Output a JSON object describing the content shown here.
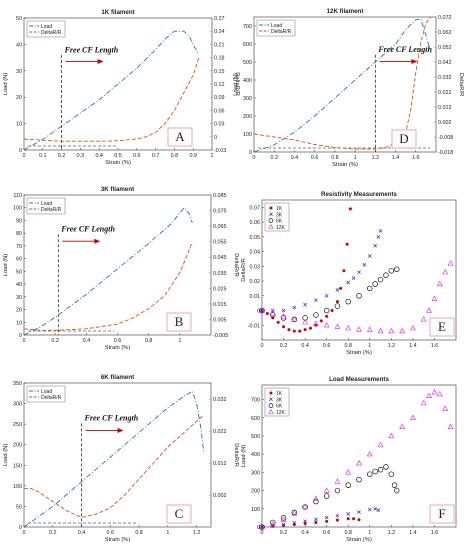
{
  "colors": {
    "load": "#1f77b4",
    "delta": "#d95319",
    "red": "#cc0000",
    "blue": "#2b2bd6",
    "black": "#111111",
    "magenta": "#e020e0",
    "letterbox": "#e8a0a0"
  },
  "chart_data": [
    {
      "type": "line",
      "title": "1K filament",
      "xlabel": "Strain (%)",
      "ylabel": "Load (N)",
      "ylabel_right": "DeltaR/R",
      "xlim": [
        0,
        1
      ],
      "ylim": [
        0,
        50
      ],
      "ylim_right": [
        -0.03,
        0.27
      ],
      "xticks": [
        "0",
        "0.1",
        "0.2",
        "0.3",
        "0.4",
        "0.5",
        "0.6",
        "0.7",
        "0.8",
        "0.9",
        "1"
      ],
      "yticks": [
        "0",
        "10",
        "20",
        "30",
        "40",
        "50"
      ],
      "yticks_right": [
        "-0.03",
        "0",
        "0.03",
        "0.06",
        "0.09",
        "0.12",
        "0.15",
        "0.18",
        "0.21",
        "0.24",
        "0.27"
      ],
      "legend": [
        "Load",
        "DeltaR/R"
      ],
      "annotation": "Free CF Length",
      "panel_letter": "A",
      "marker_x": 0.2,
      "series": [
        {
          "name": "Load",
          "axis": "left",
          "x": [
            0,
            0.1,
            0.2,
            0.3,
            0.4,
            0.5,
            0.6,
            0.7,
            0.75,
            0.8,
            0.85,
            0.88,
            0.9,
            0.93
          ],
          "y": [
            0,
            4,
            9,
            14,
            19,
            25,
            31,
            38,
            42,
            45,
            45,
            43,
            40,
            36
          ]
        },
        {
          "name": "DeltaR/R",
          "axis": "right",
          "x": [
            0,
            0.1,
            0.2,
            0.3,
            0.4,
            0.5,
            0.6,
            0.65,
            0.7,
            0.75,
            0.8,
            0.85,
            0.9,
            0.93
          ],
          "y": [
            -0.005,
            -0.008,
            -0.01,
            -0.01,
            -0.01,
            -0.009,
            -0.005,
            0.0,
            0.01,
            0.03,
            0.06,
            0.1,
            0.14,
            0.18
          ]
        }
      ]
    },
    {
      "type": "line",
      "title": "12K filament",
      "xlabel": "Strain (%)",
      "ylabel": "Load (N)",
      "ylabel_right": "DeltaR/R",
      "xlim": [
        0,
        1.8
      ],
      "ylim": [
        0,
        750
      ],
      "ylim_right": [
        -0.018,
        0.072
      ],
      "xticks": [
        "0",
        "0.2",
        "0.4",
        "0.6",
        "0.8",
        "1",
        "1.2",
        "1.4",
        "1.6"
      ],
      "yticks": [
        "0",
        "100",
        "200",
        "300",
        "400",
        "500",
        "600",
        "700"
      ],
      "yticks_right": [
        "-0.018",
        "-0.008",
        "0.002",
        "0.012",
        "0.022",
        "0.032",
        "0.042",
        "0.052",
        "0.062",
        "0.072"
      ],
      "legend": [
        "Load",
        "DeltaR/R"
      ],
      "annotation": "Free CF Length",
      "panel_letter": "D",
      "marker_x": 1.2,
      "series": [
        {
          "name": "Load",
          "axis": "left",
          "x": [
            0,
            0.2,
            0.4,
            0.6,
            0.8,
            1.0,
            1.2,
            1.4,
            1.5,
            1.6,
            1.65,
            1.7,
            1.75
          ],
          "y": [
            0,
            40,
            110,
            200,
            300,
            400,
            500,
            600,
            680,
            735,
            740,
            650,
            550
          ]
        },
        {
          "name": "DeltaR/R",
          "axis": "right",
          "x": [
            0,
            0.2,
            0.4,
            0.6,
            0.8,
            1.0,
            1.2,
            1.3,
            1.4,
            1.5,
            1.55,
            1.6,
            1.65,
            1.7,
            1.75
          ],
          "y": [
            -0.006,
            -0.008,
            -0.01,
            -0.013,
            -0.015,
            -0.016,
            -0.016,
            -0.015,
            -0.012,
            -0.005,
            0.01,
            0.035,
            0.055,
            0.068,
            0.072
          ]
        }
      ]
    },
    {
      "type": "line",
      "title": "3K filament",
      "xlabel": "Strain (%)",
      "ylabel": "Load (N)",
      "ylabel_right": "DeltaR/R",
      "xlim": [
        0,
        1.2
      ],
      "ylim": [
        0,
        110
      ],
      "ylim_right": [
        -0.005,
        0.085
      ],
      "xticks": [
        "0",
        "0.2",
        "0.4",
        "0.6",
        "0.8",
        "1"
      ],
      "yticks": [
        "0",
        "10",
        "20",
        "30",
        "40",
        "50",
        "60",
        "70",
        "80",
        "90",
        "100",
        "110"
      ],
      "yticks_right": [
        "-0.005",
        "0.005",
        "0.015",
        "0.025",
        "0.035",
        "0.045",
        "0.055",
        "0.065",
        "0.075",
        "0.085"
      ],
      "legend": [
        "Load",
        "DeltaR/R"
      ],
      "annotation": "Free CF Length",
      "panel_letter": "B",
      "marker_x": 0.22,
      "series": [
        {
          "name": "Load",
          "axis": "left",
          "x": [
            0,
            0.1,
            0.2,
            0.4,
            0.6,
            0.8,
            0.95,
            1.0,
            1.03,
            1.06,
            1.08
          ],
          "y": [
            0,
            6,
            14,
            32,
            52,
            72,
            88,
            96,
            100,
            95,
            88
          ]
        },
        {
          "name": "DeltaR/R",
          "axis": "right",
          "x": [
            0,
            0.1,
            0.2,
            0.4,
            0.6,
            0.7,
            0.8,
            0.9,
            1.0,
            1.05,
            1.08
          ],
          "y": [
            -0.001,
            -0.002,
            -0.002,
            -0.001,
            0.002,
            0.006,
            0.012,
            0.02,
            0.035,
            0.047,
            0.055
          ]
        }
      ]
    },
    {
      "type": "scatter",
      "title": "Resistivity Measurements",
      "xlabel": "Strain (%)",
      "ylabel": "DeltaR/R",
      "xlim": [
        0,
        1.8
      ],
      "ylim": [
        -0.02,
        0.075
      ],
      "xticks": [
        "0",
        "0.2",
        "0.4",
        "0.6",
        "0.8",
        "1",
        "1.2",
        "1.4",
        "1.6"
      ],
      "yticks": [
        "-0.01",
        "0",
        "0.01",
        "0.02",
        "0.03",
        "0.04",
        "0.05",
        "0.06",
        "0.07"
      ],
      "legend": [
        "1K",
        "3K",
        "6K",
        "12K"
      ],
      "panel_letter": "E",
      "series": [
        {
          "name": "1K",
          "marker": "filled-circle",
          "x": [
            0,
            0.05,
            0.1,
            0.15,
            0.2,
            0.25,
            0.3,
            0.35,
            0.4,
            0.45,
            0.5,
            0.55,
            0.6,
            0.65,
            0.7,
            0.73,
            0.76,
            0.79,
            0.82
          ],
          "y": [
            0,
            -0.002,
            -0.005,
            -0.008,
            -0.011,
            -0.013,
            -0.014,
            -0.014,
            -0.013,
            -0.012,
            -0.01,
            -0.007,
            -0.004,
            0.0,
            0.006,
            0.015,
            0.027,
            0.045,
            0.069
          ]
        },
        {
          "name": "3K",
          "marker": "x",
          "x": [
            0,
            0.1,
            0.2,
            0.3,
            0.4,
            0.5,
            0.6,
            0.7,
            0.8,
            0.85,
            0.9,
            0.95,
            1.0,
            1.05,
            1.08,
            1.1
          ],
          "y": [
            0,
            0.0,
            0.0,
            0.002,
            0.004,
            0.007,
            0.01,
            0.014,
            0.019,
            0.022,
            0.026,
            0.031,
            0.037,
            0.044,
            0.05,
            0.054
          ]
        },
        {
          "name": "6K",
          "marker": "open-circle",
          "x": [
            0,
            0.1,
            0.2,
            0.3,
            0.4,
            0.5,
            0.6,
            0.7,
            0.8,
            0.9,
            1.0,
            1.05,
            1.1,
            1.15,
            1.2,
            1.25
          ],
          "y": [
            0,
            -0.003,
            -0.005,
            -0.006,
            -0.005,
            -0.003,
            0.0,
            0.003,
            0.006,
            0.01,
            0.015,
            0.018,
            0.021,
            0.024,
            0.027,
            0.028
          ]
        },
        {
          "name": "12K",
          "marker": "open-triangle",
          "x": [
            0,
            0.1,
            0.2,
            0.3,
            0.4,
            0.5,
            0.6,
            0.7,
            0.8,
            0.9,
            1.0,
            1.1,
            1.2,
            1.3,
            1.4,
            1.5,
            1.55,
            1.6,
            1.65,
            1.7,
            1.75
          ],
          "y": [
            0,
            -0.002,
            -0.004,
            -0.006,
            -0.008,
            -0.009,
            -0.01,
            -0.011,
            -0.012,
            -0.013,
            -0.013,
            -0.014,
            -0.014,
            -0.014,
            -0.012,
            -0.006,
            0.0,
            0.008,
            0.018,
            0.026,
            0.032
          ]
        }
      ]
    },
    {
      "type": "line",
      "title": "6K filament",
      "xlabel": "Strain (%)",
      "ylabel": "Load (N)",
      "ylabel_right": "DeltaR/R",
      "xlim": [
        0,
        1.3
      ],
      "ylim": [
        0,
        350
      ],
      "ylim_right": [
        -0.008,
        0.037
      ],
      "xticks": [
        "0",
        "0.2",
        "0.4",
        "0.6",
        "0.8",
        "1",
        "1.2"
      ],
      "yticks": [
        "0",
        "50",
        "100",
        "150",
        "200",
        "250",
        "300",
        "350"
      ],
      "yticks_right": [
        "0.002",
        "0.012",
        "0.022",
        "0.032"
      ],
      "legend": [
        "Load",
        "DeltaR/R"
      ],
      "annotation": "Free CF Length",
      "panel_letter": "C",
      "marker_x": 0.4,
      "series": [
        {
          "name": "Load",
          "axis": "left",
          "x": [
            0,
            0.2,
            0.4,
            0.6,
            0.8,
            1.0,
            1.1,
            1.17,
            1.2,
            1.23,
            1.25
          ],
          "y": [
            0,
            50,
            110,
            170,
            230,
            290,
            315,
            330,
            300,
            240,
            180
          ]
        },
        {
          "name": "DeltaR/R",
          "axis": "right",
          "x": [
            0,
            0.05,
            0.1,
            0.2,
            0.3,
            0.4,
            0.5,
            0.6,
            0.7,
            0.8,
            0.9,
            1.0,
            1.1,
            1.2,
            1.25
          ],
          "y": [
            0.004,
            0.004,
            0.003,
            0.0,
            -0.003,
            -0.005,
            -0.004,
            -0.002,
            0.002,
            0.007,
            0.012,
            0.017,
            0.021,
            0.025,
            0.027
          ]
        }
      ]
    },
    {
      "type": "scatter",
      "title": "Load Measurements",
      "xlabel": "Strain (%)",
      "ylabel": "Load (N)",
      "xlim": [
        0,
        1.8
      ],
      "ylim": [
        0,
        780
      ],
      "xticks": [
        "0",
        "0.2",
        "0.4",
        "0.6",
        "0.8",
        "1",
        "1.2",
        "1.4",
        "1.6"
      ],
      "yticks": [
        "0",
        "100",
        "200",
        "300",
        "400",
        "500",
        "600",
        "700"
      ],
      "legend": [
        "1K",
        "3K",
        "6K",
        "12K"
      ],
      "panel_letter": "F",
      "series": [
        {
          "name": "1K",
          "marker": "filled-circle",
          "x": [
            0,
            0.1,
            0.2,
            0.3,
            0.4,
            0.5,
            0.6,
            0.7,
            0.8,
            0.85,
            0.9
          ],
          "y": [
            0,
            4,
            9,
            14,
            19,
            25,
            31,
            38,
            45,
            45,
            40
          ]
        },
        {
          "name": "3K",
          "marker": "x",
          "x": [
            0,
            0.1,
            0.2,
            0.3,
            0.4,
            0.5,
            0.6,
            0.7,
            0.8,
            0.9,
            1.0,
            1.05,
            1.08
          ],
          "y": [
            0,
            6,
            14,
            23,
            32,
            42,
            52,
            62,
            72,
            82,
            96,
            100,
            92
          ]
        },
        {
          "name": "6K",
          "marker": "open-circle",
          "x": [
            0,
            0.1,
            0.2,
            0.3,
            0.4,
            0.5,
            0.6,
            0.7,
            0.8,
            0.9,
            1.0,
            1.05,
            1.1,
            1.15,
            1.2,
            1.23,
            1.25
          ],
          "y": [
            0,
            25,
            50,
            80,
            110,
            140,
            170,
            200,
            230,
            260,
            290,
            305,
            315,
            330,
            290,
            230,
            200
          ]
        },
        {
          "name": "12K",
          "marker": "open-triangle",
          "x": [
            0,
            0.1,
            0.2,
            0.3,
            0.4,
            0.5,
            0.6,
            0.7,
            0.8,
            0.9,
            1.0,
            1.1,
            1.2,
            1.3,
            1.4,
            1.5,
            1.55,
            1.6,
            1.65,
            1.7,
            1.75
          ],
          "y": [
            0,
            15,
            40,
            75,
            110,
            155,
            200,
            250,
            300,
            350,
            400,
            450,
            500,
            550,
            600,
            680,
            720,
            740,
            730,
            650,
            550
          ]
        }
      ]
    }
  ]
}
